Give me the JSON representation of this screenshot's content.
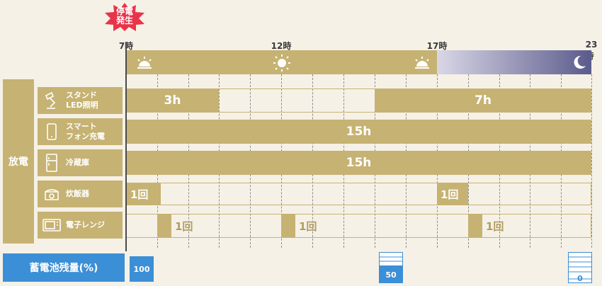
{
  "badge": "停電\n発生",
  "time_ticks": [
    "7時",
    "12時",
    "17時",
    "23時"
  ],
  "colors": {
    "accent": "#c6b272",
    "battery": "#3b8fd6",
    "badge": "#e8344a"
  },
  "side_label": "放電",
  "appliances": [
    {
      "label": "スタンド\nLED照明",
      "icon": "lamp-icon",
      "bars": [
        "3h",
        "7h"
      ]
    },
    {
      "label": "スマート\nフォン充電",
      "icon": "smartphone-icon",
      "bars": [
        "15h"
      ]
    },
    {
      "label": "冷蔵庫",
      "icon": "refrigerator-icon",
      "bars": [
        "15h"
      ]
    },
    {
      "label": "炊飯器",
      "icon": "rice-cooker-icon",
      "marks": [
        "1回",
        "1回"
      ]
    },
    {
      "label": "電子レンジ",
      "icon": "microwave-icon",
      "marks": [
        "1回",
        "1回",
        "1回"
      ]
    }
  ],
  "battery_legend": "蓄電池残量(%)",
  "battery_levels": [
    "100",
    "50",
    "0"
  ]
}
